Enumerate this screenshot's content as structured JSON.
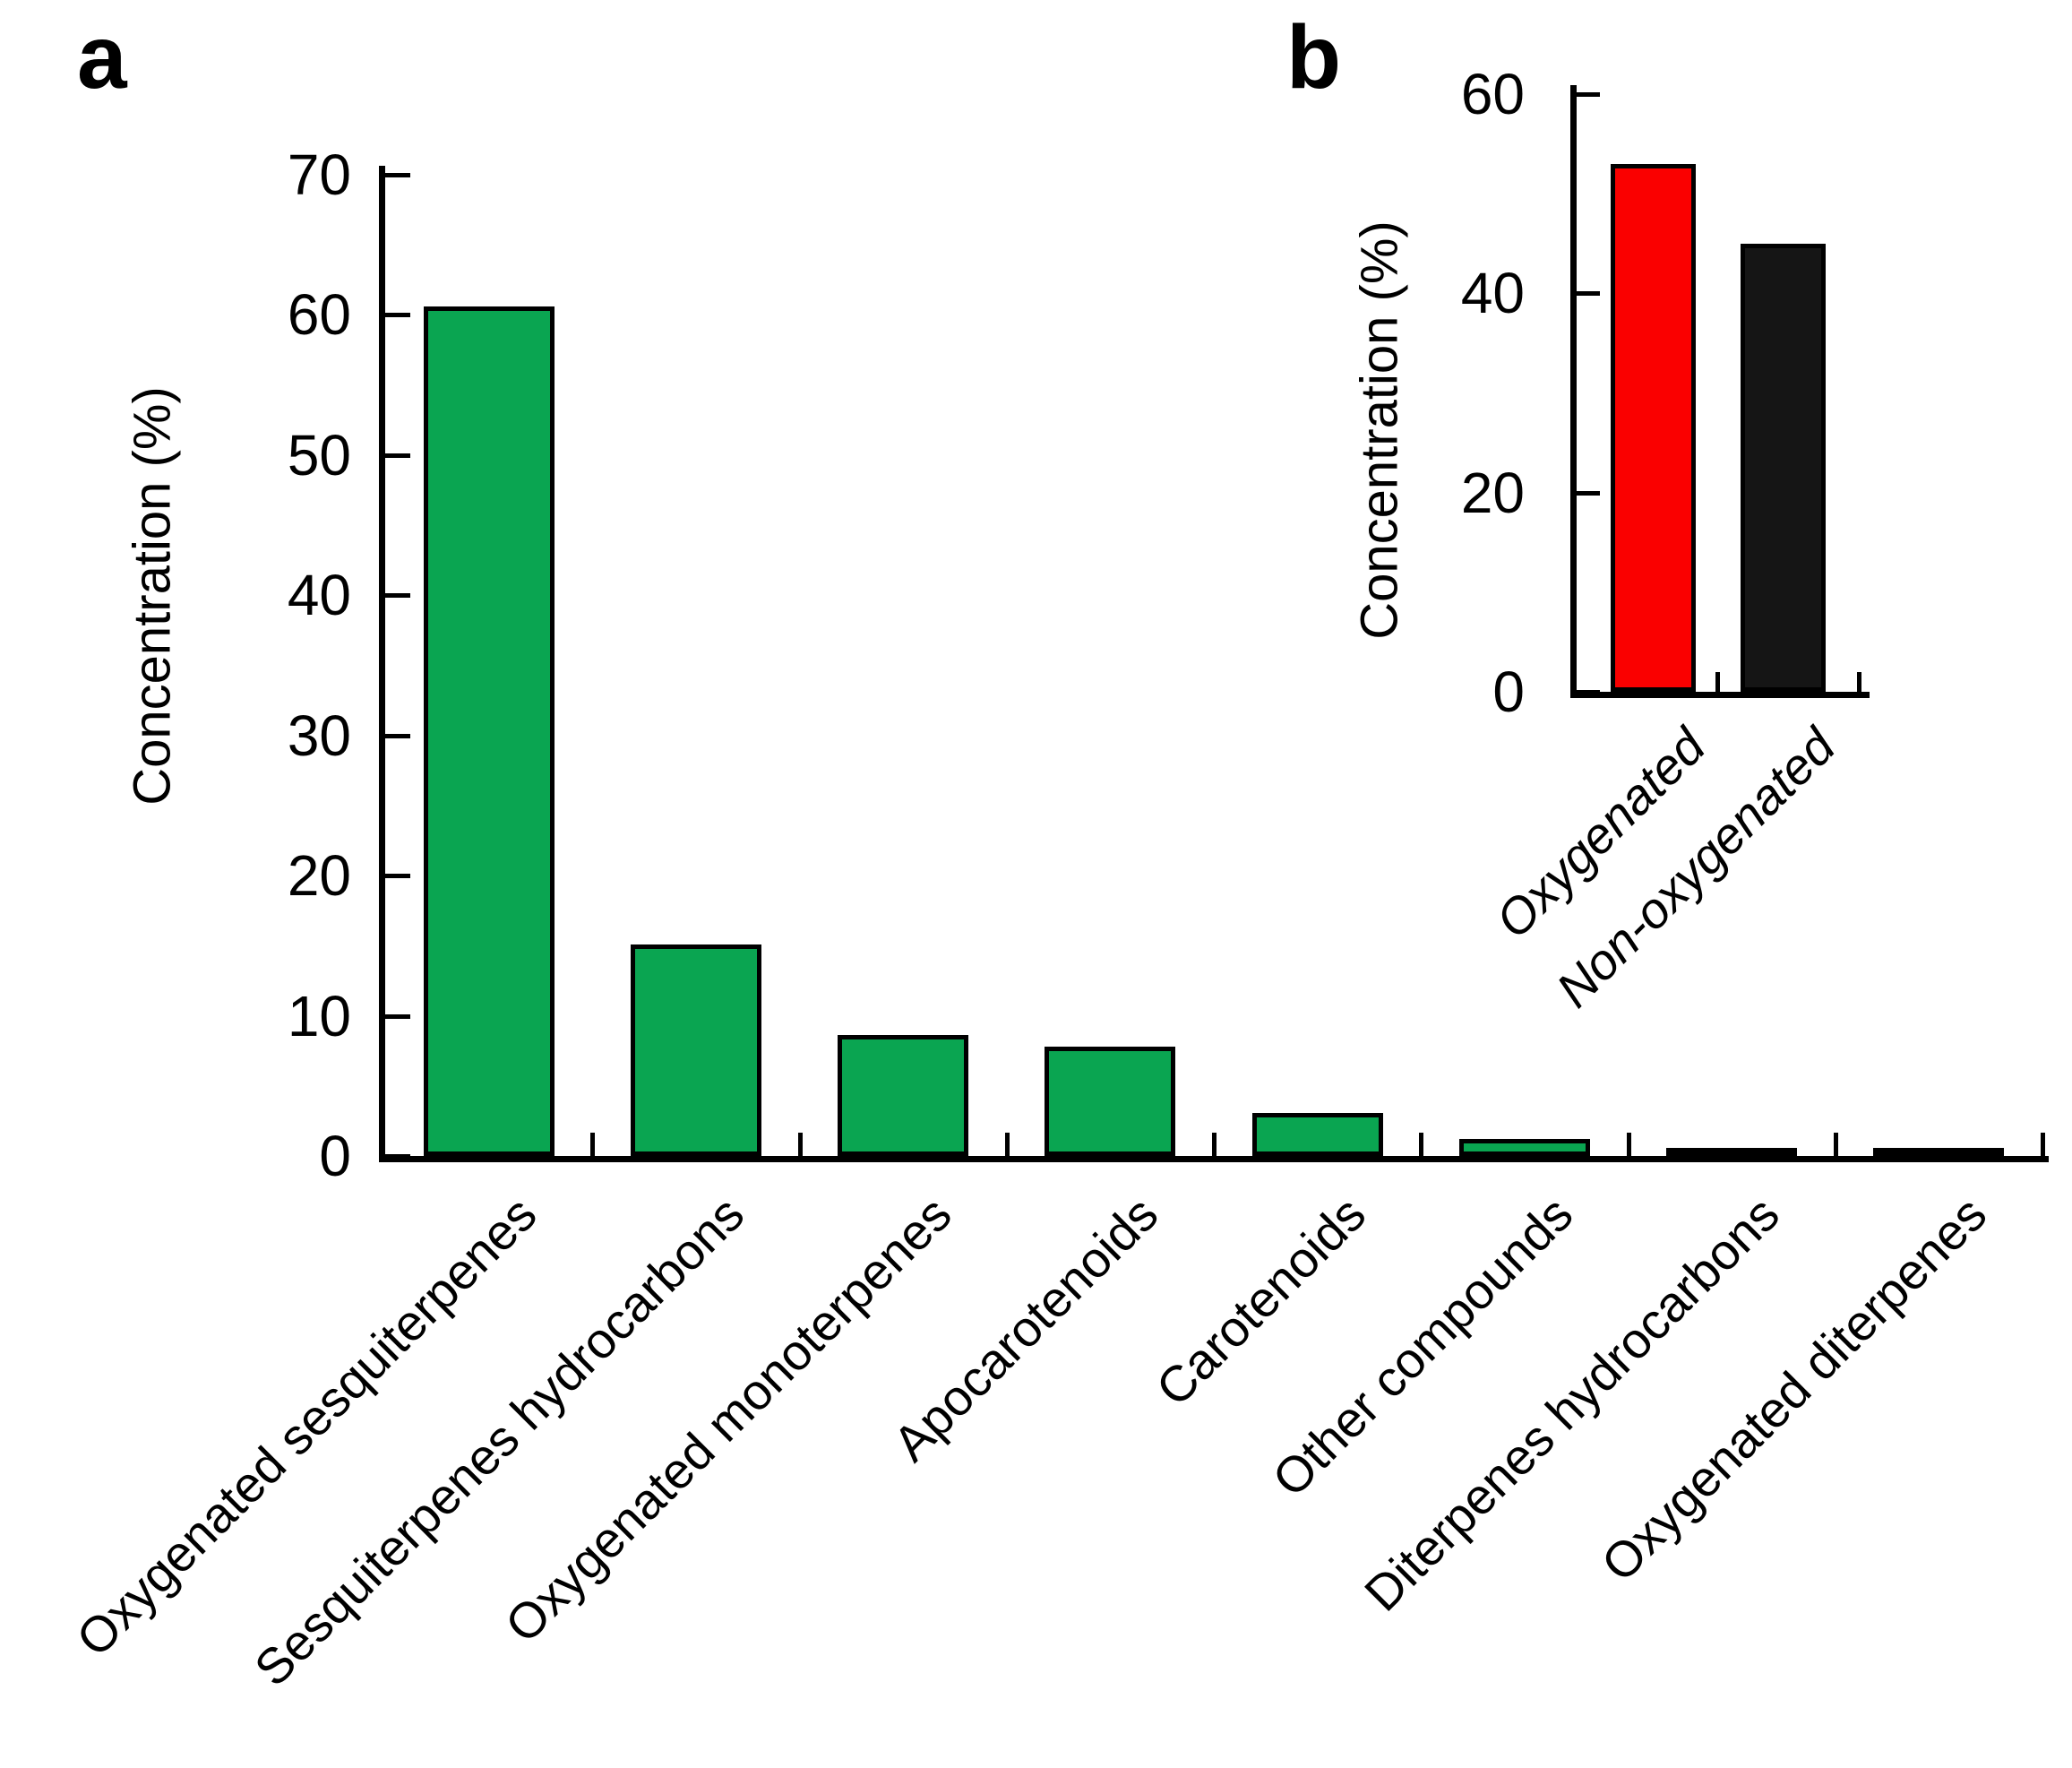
{
  "figure": {
    "background": "#ffffff",
    "axis_color": "#000000",
    "text_color": "#000000"
  },
  "chart_data": [
    {
      "id": "a",
      "panel_label": "a",
      "type": "bar",
      "title": "",
      "xlabel": "",
      "ylabel": "Concentration (%)",
      "ylim": [
        0,
        70
      ],
      "yticks": [
        0,
        10,
        20,
        30,
        40,
        50,
        60,
        70
      ],
      "grid": false,
      "legend_position": "none",
      "categories": [
        "Oxygenated sesquiterpenes",
        "Sesquiterpenes hydrocarbons",
        "Oxygenated monoterpenes",
        "Apocarotenoids",
        "Carotenoids",
        "Other compounds",
        "Diterpenes hydrocarbons",
        "Oxygenated diterpenes"
      ],
      "values": [
        60.6,
        15.1,
        8.6,
        7.8,
        3.1,
        1.2,
        0.2,
        0.2
      ],
      "bar_color": "#0aa551",
      "bar_outline_color": "#000000",
      "category_label_rotation_deg": -45,
      "category_label_italic": false
    },
    {
      "id": "b",
      "panel_label": "b",
      "type": "bar",
      "title": "",
      "xlabel": "",
      "ylabel": "Concentration (%)",
      "ylim": [
        0,
        60
      ],
      "yticks": [
        0,
        20,
        40,
        60
      ],
      "grid": false,
      "legend_position": "none",
      "categories": [
        "Oxygenated",
        "Non-oxygenated"
      ],
      "values": [
        53,
        45
      ],
      "bar_colors": [
        "#fa0000",
        "#151515"
      ],
      "bar_outline_color": "#000000",
      "category_label_rotation_deg": -45,
      "category_label_italic": true
    }
  ]
}
